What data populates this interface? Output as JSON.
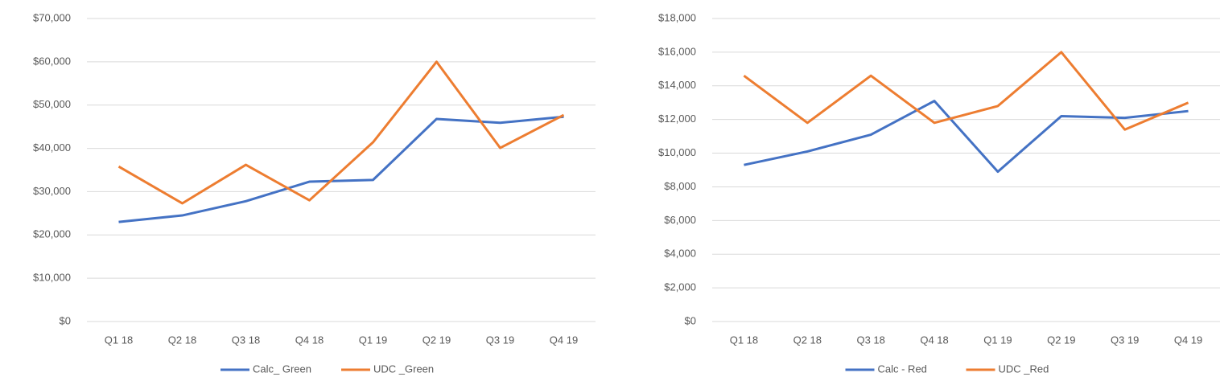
{
  "chart_data": [
    {
      "type": "line",
      "categories": [
        "Q1 18",
        "Q2 18",
        "Q3 18",
        "Q4 18",
        "Q1 19",
        "Q2 19",
        "Q3 19",
        "Q4 19"
      ],
      "series": [
        {
          "name": "Calc_ Green",
          "color": "#4472c4",
          "values": [
            23000,
            24500,
            27800,
            32300,
            32700,
            46800,
            45900,
            47300
          ]
        },
        {
          "name": "UDC _Green",
          "color": "#ed7d31",
          "values": [
            35800,
            27300,
            36200,
            28000,
            41400,
            60000,
            40100,
            47700
          ]
        }
      ],
      "ylim": [
        0,
        70000
      ],
      "yticks": [
        {
          "value": 0,
          "label": "$0"
        },
        {
          "value": 10000,
          "label": "$10,000"
        },
        {
          "value": 20000,
          "label": "$20,000"
        },
        {
          "value": 30000,
          "label": "$30,000"
        },
        {
          "value": 40000,
          "label": "$40,000"
        },
        {
          "value": 50000,
          "label": "$50,000"
        },
        {
          "value": 60000,
          "label": "$60,000"
        },
        {
          "value": 70000,
          "label": "$70,000"
        }
      ],
      "grid": true,
      "legend": "bottom"
    },
    {
      "type": "line",
      "categories": [
        "Q1 18",
        "Q2 18",
        "Q3 18",
        "Q4 18",
        "Q1 19",
        "Q2 19",
        "Q3 19",
        "Q4 19"
      ],
      "series": [
        {
          "name": "Calc - Red",
          "color": "#4472c4",
          "values": [
            9300,
            10100,
            11100,
            13100,
            8900,
            12200,
            12100,
            12500
          ]
        },
        {
          "name": "UDC _Red",
          "color": "#ed7d31",
          "values": [
            14600,
            11800,
            14600,
            11800,
            12800,
            16000,
            11400,
            13000
          ]
        }
      ],
      "ylim": [
        0,
        18000
      ],
      "yticks": [
        {
          "value": 0,
          "label": "$0"
        },
        {
          "value": 2000,
          "label": "$2,000"
        },
        {
          "value": 4000,
          "label": "$4,000"
        },
        {
          "value": 6000,
          "label": "$6,000"
        },
        {
          "value": 8000,
          "label": "$8,000"
        },
        {
          "value": 10000,
          "label": "$10,000"
        },
        {
          "value": 12000,
          "label": "$12,000"
        },
        {
          "value": 14000,
          "label": "$14,000"
        },
        {
          "value": 16000,
          "label": "$16,000"
        },
        {
          "value": 18000,
          "label": "$18,000"
        }
      ],
      "grid": true,
      "legend": "bottom"
    }
  ]
}
